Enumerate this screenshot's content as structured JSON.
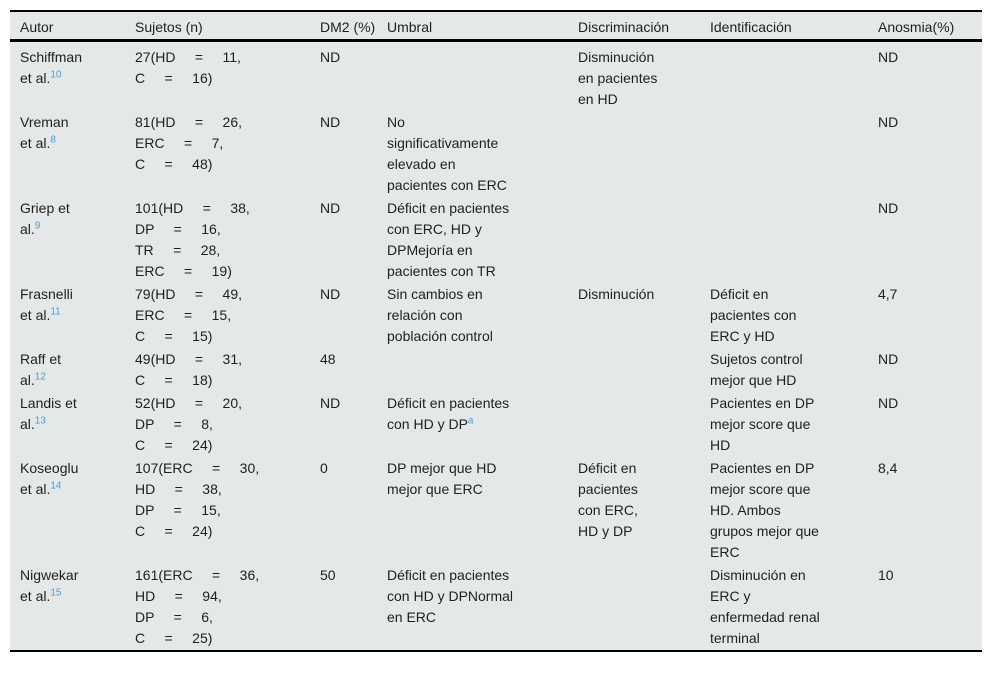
{
  "colors": {
    "table_background": "#e5e8e8",
    "text": "#1f1f1f",
    "citation_link": "#45a1d8",
    "rule": "#000000"
  },
  "table": {
    "columns": [
      {
        "key": "autor",
        "label": "Autor"
      },
      {
        "key": "sujetos",
        "label": "Sujetos (n)"
      },
      {
        "key": "dm2",
        "label": "DM2 (%)"
      },
      {
        "key": "umbral",
        "label": "Umbral"
      },
      {
        "key": "discriminacion",
        "label": "Discriminación"
      },
      {
        "key": "identificacion",
        "label": "Identificación"
      },
      {
        "key": "anosmia",
        "label": "Anosmia(%)"
      }
    ],
    "rows": [
      {
        "autor": {
          "text": "Schiffman\net al.",
          "ref": "10"
        },
        "sujetos": "27(HD     =     11,\nC     =     16)",
        "dm2": "ND",
        "umbral": "",
        "discriminacion": "Disminución\nen pacientes\nen HD",
        "identificacion": "",
        "anosmia": "ND"
      },
      {
        "autor": {
          "text": "Vreman\net al.",
          "ref": "8"
        },
        "sujetos": "81(HD     =     26,\nERC     =     7,\nC     =     48)",
        "dm2": "ND",
        "umbral": "No\nsignificativamente\nelevado en\npacientes con ERC",
        "discriminacion": "",
        "identificacion": "",
        "anosmia": "ND"
      },
      {
        "autor": {
          "text": "Griep et\nal.",
          "ref": "9"
        },
        "sujetos": "101(HD     =     38,\nDP     =     16,\nTR     =     28,\nERC     =     19)",
        "dm2": "ND",
        "umbral": "Déficit en pacientes\ncon ERC, HD y\nDPMejoría en\npacientes con TR",
        "discriminacion": "",
        "identificacion": "",
        "anosmia": "ND"
      },
      {
        "autor": {
          "text": "Frasnelli\net al.",
          "ref": "11"
        },
        "sujetos": "79(HD     =     49,\nERC     =     15,\nC     =     15)",
        "dm2": "ND",
        "umbral": "Sin cambios en\nrelación con\npoblación control",
        "discriminacion": "Disminución",
        "identificacion": "Déficit en\npacientes con\nERC y HD",
        "anosmia": "4,7"
      },
      {
        "autor": {
          "text": "Raff et\nal.",
          "ref": "12"
        },
        "sujetos": "49(HD     =     31,\nC     =     18)",
        "dm2": "48",
        "umbral": "",
        "discriminacion": "",
        "identificacion": "Sujetos control\nmejor que HD",
        "anosmia": "ND"
      },
      {
        "autor": {
          "text": "Landis et\nal.",
          "ref": "13"
        },
        "sujetos": "52(HD     =     20,\nDP     =     8,\nC     =     24)",
        "dm2": "ND",
        "umbral": {
          "text": "Déficit en pacientes\ncon HD y DP",
          "sup": "a"
        },
        "discriminacion": "",
        "identificacion": "Pacientes en DP\nmejor score que\nHD",
        "anosmia": "ND"
      },
      {
        "autor": {
          "text": "Koseoglu\net al.",
          "ref": "14"
        },
        "sujetos": "107(ERC     =     30,\nHD     =     38,\nDP     =     15,\nC     =     24)",
        "dm2": "0",
        "umbral": "DP mejor que HD\nmejor que ERC",
        "discriminacion": "Déficit en\npacientes\ncon ERC,\nHD y DP",
        "identificacion": "Pacientes en DP\nmejor score que\nHD. Ambos\ngrupos mejor que\nERC",
        "anosmia": "8,4"
      },
      {
        "autor": {
          "text": "Nigwekar\net al.",
          "ref": "15"
        },
        "sujetos": "161(ERC     =     36,\nHD     =     94,\nDP     =     6,\nC     =     25)",
        "dm2": "50",
        "umbral": "Déficit en pacientes\ncon HD y DPNormal\nen ERC",
        "discriminacion": "",
        "identificacion": "Disminución en\nERC y\nenfermedad renal\nterminal",
        "anosmia": "10"
      }
    ]
  }
}
